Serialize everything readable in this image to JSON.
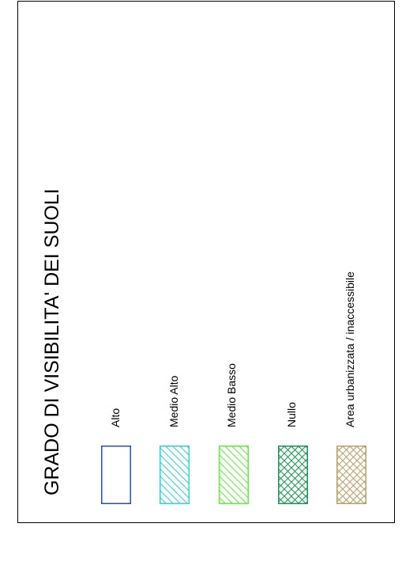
{
  "legend": {
    "title": "GRADO DI VISIBILITA' DEI SUOLI",
    "items": [
      {
        "label": "Alto",
        "pattern": "empty",
        "color": "#1f4fcf"
      },
      {
        "label": "Medio Alto",
        "pattern": "diagonal",
        "color": "#2fd3d8"
      },
      {
        "label": "Medio Basso",
        "pattern": "diagonal",
        "color": "#5ef03a"
      },
      {
        "label": "Nullo",
        "pattern": "crosshatch",
        "color": "#1a9a55"
      },
      {
        "label": "Area urbanizzata / inaccessibile",
        "pattern": "crosshatch",
        "color": "#b8a26a"
      }
    ]
  }
}
